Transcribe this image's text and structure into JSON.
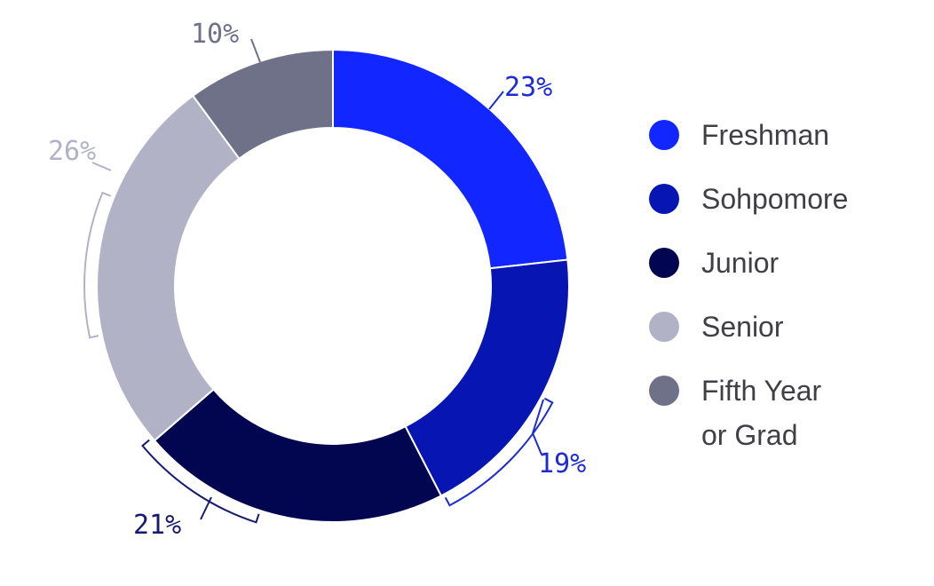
{
  "chart_data": {
    "type": "pie",
    "donut": true,
    "title": "",
    "series": [
      {
        "values": [
          23,
          19,
          21,
          26,
          10
        ],
        "unit": "%"
      }
    ],
    "categories": [
      "Freshman",
      "Sohpomore",
      "Junior",
      "Senior",
      "Fifth Year or Grad"
    ],
    "values": [
      23,
      19,
      21,
      26,
      10
    ],
    "labels": [
      "23%",
      "19%",
      "21%",
      "26%",
      "10%"
    ],
    "legend": {
      "position": "right",
      "entries": [
        {
          "lines": [
            "Freshman"
          ],
          "color": "#1226ff"
        },
        {
          "lines": [
            "Sohpomore"
          ],
          "color": "#0716b3"
        },
        {
          "lines": [
            "Junior"
          ],
          "color": "#020550"
        },
        {
          "lines": [
            "Senior"
          ],
          "color": "#b1b2c6"
        },
        {
          "lines": [
            "Fifth Year",
            "or Grad"
          ],
          "color": "#6f7188"
        }
      ]
    },
    "label_colors": [
      "#1c2bd6",
      "#1c2bd6",
      "#161b70",
      "#b1b2c6",
      "#6f7188"
    ]
  }
}
